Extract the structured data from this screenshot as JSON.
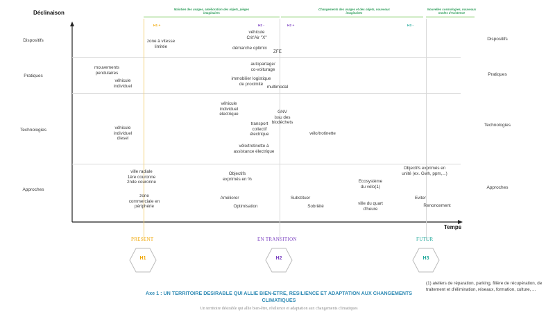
{
  "axes": {
    "y_title": "Déclinaison",
    "x_title": "Temps"
  },
  "rows": {
    "dispositifs": "Dispositifs",
    "pratiques": "Pratiques",
    "technologies": "Technologies",
    "approches": "Approches"
  },
  "top_notes": {
    "note1": "Maintien des usages, amélioration des objets, pièges imaginaires",
    "note2": "Changements des usages et des objets, nouveaux imaginaires",
    "note3": "Nouvelles cosmologies, nouveaux modes d'existence"
  },
  "h_markers": {
    "h1p": "H1 +",
    "h2m": "H2 -",
    "h2p": "H2 +",
    "h3m": "H3 -"
  },
  "cells": {
    "c1": "zone à vitesse\nlimitée",
    "c2": "véhicule\nCrit'Air \"X\"",
    "c3": "démarche optimix",
    "c4": "ZFE",
    "c5": "mouvements\npendulaires",
    "c6": "véhicule\nindividuel",
    "c7": "autopartage/\nco-voiturage",
    "c8": "immobilier logistique\nde proximité",
    "c9": "multimodal",
    "c10": "véhicule\nindividuel\nélectrique",
    "c11": "GNV\nissu des\nbiodéchets",
    "c12": "transport\ncollectif\nélectrique",
    "c13": "vélo/trotinette",
    "c14": "véhicule\nindividuel\ndiesel",
    "c15": "vélo/trotinette à\nassistance électrique",
    "c16": "ville radiale\n1ère couronne\n2nde couronne",
    "c17": "Objectifs\nexprimés en %",
    "c18": "Ecosystème\ndu vélo(1)",
    "c19": "Objectifs exprimés en\nunité (ex. Gwh, ppm,...)",
    "c20": "zone\ncommerciale en\npériphérie",
    "c21": "Améliorer",
    "c22": "Optimisation",
    "c23": "Substituer",
    "c24": "Sobriété",
    "c25": "ville du quart\nd'heure",
    "c26": "Eviter",
    "c27": "Renoncement"
  },
  "phases": {
    "present": "PRESENT",
    "transition": "EN TRANSITION",
    "futur": "FUTUR",
    "h1": "H1",
    "h2": "H2",
    "h3": "H3"
  },
  "footer": {
    "title": "Axe 1 : UN TERRITOIRE DESIRABLE QUI ALLIE BIEN-ETRE, RESILIENCE ET ADAPTATION AUX CHANGEMENTS CLIMATIQUES",
    "subtitle": "Un territoire désirable qui allie bien-être, résilience et adaptation aux changements climatiques",
    "note": "(1) ateliers de réparation, parking, filière de récupération, de traitement et d'élimination, réseaux, formation, culture, ..."
  },
  "colors": {
    "h1": "#f0a500",
    "h2": "#7a3fc0",
    "h3": "#1fa89a",
    "green": "#6cc24a",
    "footer_title": "#2f8ab4"
  }
}
